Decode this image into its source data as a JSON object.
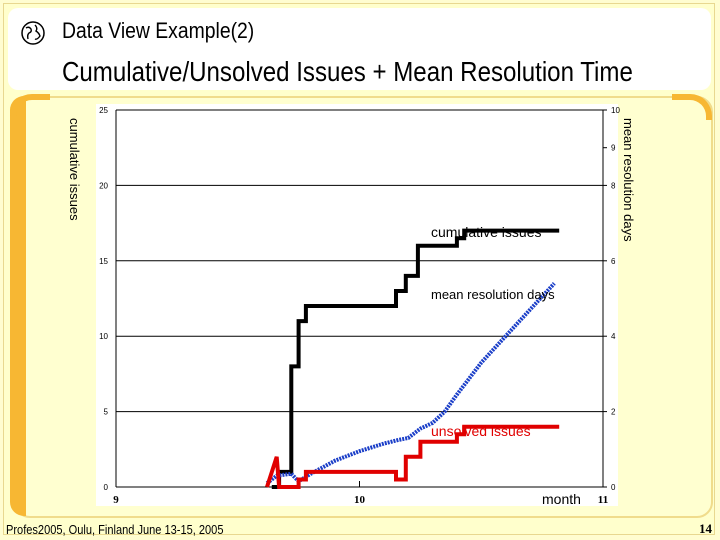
{
  "header": {
    "small_title": "Data View Example(2)",
    "main_title": "Cumulative/Unsolved Issues + Mean Resolution Time"
  },
  "footer": {
    "left": "Profes2005, Oulu, Finland June 13-15, 2005",
    "page_number": "14"
  },
  "icons": {
    "header_icon": "globe-icon"
  },
  "colors": {
    "background": "#ffffcc",
    "accent": "#f7b733",
    "cumulative": "#000000",
    "mean": "#1a3ec8",
    "unsolved": "#e00000"
  },
  "chart_data": {
    "type": "line",
    "title": "",
    "xlabel": "month",
    "ylabel": "cumulative issues",
    "y2label": "mean resolution days",
    "xlim": [
      9,
      11
    ],
    "ylim": [
      0,
      25
    ],
    "y2lim": [
      0,
      10
    ],
    "x_ticks": [
      "9",
      "10",
      "11"
    ],
    "y_ticks": [
      "0",
      "5",
      "10",
      "15",
      "20",
      "25"
    ],
    "y2_ticks": [
      "0",
      "2",
      "4",
      "6",
      "8",
      "9",
      "10"
    ],
    "grid": "horizontal",
    "series": [
      {
        "name": "cumulative issues",
        "axis": "left",
        "x": [
          9.64,
          9.67,
          9.67,
          9.72,
          9.72,
          9.75,
          9.75,
          9.78,
          9.78,
          10.15,
          10.15,
          10.19,
          10.19,
          10.24,
          10.24,
          10.28,
          10.28,
          10.4,
          10.4,
          10.43,
          10.43,
          10.82
        ],
        "y": [
          0,
          0,
          1,
          1,
          8,
          8,
          11,
          11,
          12,
          12,
          13,
          13,
          14,
          14,
          16,
          16,
          16,
          16,
          16.5,
          16.5,
          17,
          17
        ]
      },
      {
        "name": "mean resolution days",
        "axis": "right",
        "x": [
          9.62,
          9.66,
          9.72,
          9.75,
          9.8,
          9.9,
          10.0,
          10.1,
          10.16,
          10.2,
          10.25,
          10.3,
          10.35,
          10.4,
          10.5,
          10.6,
          10.7,
          10.8
        ],
        "y": [
          0.1,
          0.3,
          0.35,
          0.15,
          0.35,
          0.7,
          0.95,
          1.15,
          1.25,
          1.3,
          1.55,
          1.7,
          2.0,
          2.45,
          3.3,
          4.0,
          4.7,
          5.4
        ]
      },
      {
        "name": "unsolved issues",
        "axis": "left",
        "x": [
          9.62,
          9.66,
          9.67,
          9.75,
          9.75,
          9.78,
          9.78,
          10.15,
          10.15,
          10.19,
          10.19,
          10.25,
          10.25,
          10.4,
          10.4,
          10.43,
          10.43,
          10.82
        ],
        "y": [
          0,
          2,
          0,
          0,
          0.5,
          0.5,
          1,
          1,
          0.5,
          0.5,
          2,
          2,
          3,
          3,
          3.5,
          3.5,
          4,
          4
        ]
      }
    ]
  }
}
